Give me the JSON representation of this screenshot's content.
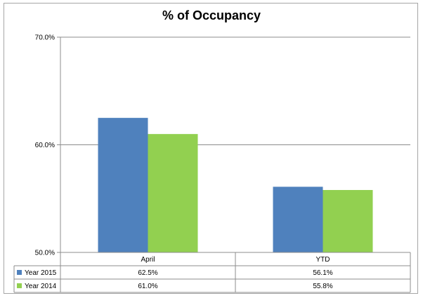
{
  "chart_data": {
    "type": "bar",
    "title": "% of Occupancy",
    "categories": [
      "April",
      "YTD"
    ],
    "series": [
      {
        "name": "Year 2015",
        "values": [
          62.5,
          56.1
        ],
        "color": "#4f81bd",
        "labels": [
          "62.5%",
          "56.1%"
        ]
      },
      {
        "name": "Year 2014",
        "values": [
          61.0,
          55.8
        ],
        "color": "#92d050",
        "labels": [
          "61.0%",
          "55.8%"
        ]
      }
    ],
    "ylim": [
      50,
      70
    ],
    "yticks": [
      50,
      60,
      70
    ],
    "ytick_labels": [
      "50.0%",
      "60.0%",
      "70.0%"
    ],
    "xlabel": "",
    "ylabel": "",
    "grid": true,
    "legend": "data-table"
  }
}
